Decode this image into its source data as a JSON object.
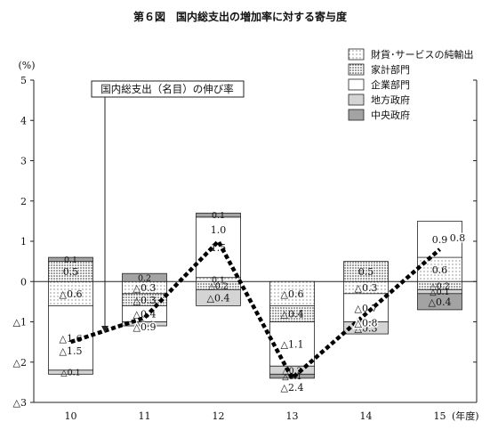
{
  "chart_data": {
    "type": "bar",
    "title": "第６図　国内総支出の増加率に対する寄与度",
    "ylabel": "(%)",
    "xlabel": "(年度)",
    "ylim": [
      -3,
      5
    ],
    "yticks": [
      {
        "v": 5,
        "label": "5"
      },
      {
        "v": 4,
        "label": "4"
      },
      {
        "v": 3,
        "label": "3"
      },
      {
        "v": 2,
        "label": "2"
      },
      {
        "v": 1,
        "label": "1"
      },
      {
        "v": 0,
        "label": "0"
      },
      {
        "v": -1,
        "label": "△1"
      },
      {
        "v": -2,
        "label": "△2"
      },
      {
        "v": -3,
        "label": "△3"
      }
    ],
    "categories": [
      "10",
      "11",
      "12",
      "13",
      "14",
      "15"
    ],
    "stack_order": [
      "foreign",
      "household",
      "corporate",
      "local",
      "central"
    ],
    "series": [
      {
        "key": "foreign",
        "name": "財貨･サービスの純輸出",
        "pattern": "dots",
        "values": [
          -0.6,
          -0.3,
          0.1,
          -0.6,
          -0.3,
          0.6
        ],
        "labels": [
          "△0.6",
          "△0.3",
          "0.1",
          "△0.6",
          "△0.3",
          "0.6"
        ]
      },
      {
        "key": "household",
        "name": "家計部門",
        "pattern": "dense-dots",
        "values": [
          0.5,
          -0.3,
          -0.2,
          -0.4,
          0.5,
          -0.2
        ],
        "labels": [
          "0.5",
          "△0.3",
          "△0.2",
          "△0.4",
          "0.5",
          "△0.2"
        ]
      },
      {
        "key": "corporate",
        "name": "企業部門",
        "pattern": "white",
        "values": [
          -1.6,
          -0.4,
          1.5,
          -1.1,
          -0.7,
          0.9
        ],
        "labels": [
          "△1.6",
          "△0.4",
          "1.5",
          "△1.1",
          "△0.7",
          "0.9"
        ]
      },
      {
        "key": "local",
        "name": "地方政府",
        "pattern": "light-gray",
        "values": [
          -0.1,
          -0.1,
          -0.4,
          -0.2,
          -0.3,
          -0.1
        ],
        "labels": [
          "△0.1",
          "△0.1",
          "△0.4",
          "△0.2",
          "△0.3",
          "△0.1"
        ]
      },
      {
        "key": "central",
        "name": "中央政府",
        "pattern": "dark-gray",
        "values": [
          0.1,
          0.2,
          0.1,
          -0.1,
          0.0,
          -0.4
        ],
        "labels": [
          "0.1",
          "0.2",
          "0.1",
          "△0.1",
          "",
          "△0.4"
        ]
      }
    ],
    "total": {
      "name": "国内総支出（名目）の伸び率",
      "values": [
        -1.5,
        -0.9,
        1.0,
        -2.4,
        -0.8,
        0.8
      ],
      "labels": [
        "△1.5",
        "△0.9",
        "1.0",
        "△2.4",
        "△0.8",
        "0.8"
      ]
    },
    "legend_position": "top-right",
    "annotation": "国内総支出（名目）の伸び率",
    "zero_line": true,
    "grid": false
  }
}
